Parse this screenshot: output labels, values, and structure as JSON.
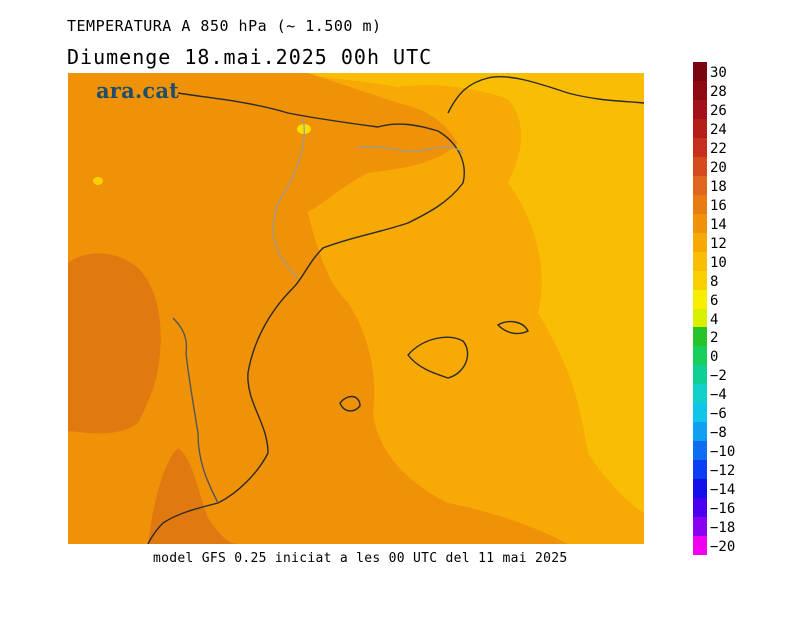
{
  "header": {
    "title": "TEMPERATURA A 850 hPa (~ 1.500 m)",
    "subtitle": "Diumenge  18.mai.2025 00h UTC"
  },
  "logo": {
    "text": "ara.cat"
  },
  "footer": {
    "text": "model GFS 0.25 iniciat a les 00 UTC del 11 mai 2025"
  },
  "colorbar": {
    "labels": [
      "30",
      "28",
      "26",
      "24",
      "22",
      "20",
      "18",
      "16",
      "14",
      "12",
      "10",
      "8",
      "6",
      "4",
      "2",
      "0",
      "−2",
      "−4",
      "−6",
      "−8",
      "−10",
      "−12",
      "−14",
      "−16",
      "−18",
      "−20"
    ],
    "colors": [
      "#7a0510",
      "#8e0a12",
      "#a3101a",
      "#b51d18",
      "#c82e1e",
      "#d64b1e",
      "#e0661c",
      "#e87c10",
      "#ef9209",
      "#f6a806",
      "#f9bd04",
      "#fbd003",
      "#f7ee00",
      "#d8f000",
      "#25c52a",
      "#17d05a",
      "#0fcf97",
      "#12cfca",
      "#10c4ea",
      "#0f9ff0",
      "#0d6ef2",
      "#0a3ef2",
      "#1510e8",
      "#4a00ee",
      "#8b00f0",
      "#f000f0"
    ]
  },
  "map": {
    "temperature_fields": {
      "warmest_region_c": "16-18",
      "central_region_c": "14-16",
      "east_region_c": "10-12"
    }
  }
}
